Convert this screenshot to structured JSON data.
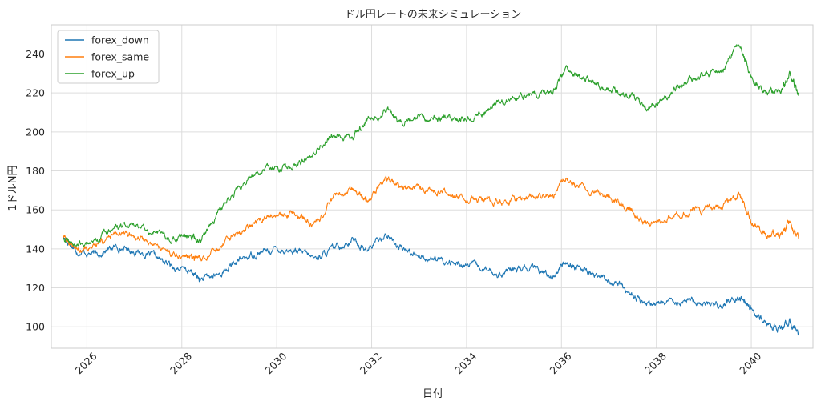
{
  "chart_data": {
    "type": "line",
    "title": "ドル円レートの未来シミュレーション",
    "xlabel": "日付",
    "ylabel": "1ドルN円",
    "xlim": [
      2025.25,
      2041.3
    ],
    "ylim": [
      89,
      255
    ],
    "xticks": [
      2026,
      2028,
      2030,
      2032,
      2034,
      2036,
      2038,
      2040
    ],
    "yticks": [
      100,
      120,
      140,
      160,
      180,
      200,
      220,
      240
    ],
    "grid": true,
    "legend_position": "top-left",
    "colors": {
      "forex_down": "#1f77b4",
      "forex_same": "#ff7f0e",
      "forex_up": "#2ca02c"
    },
    "series": [
      {
        "name": "forex_down",
        "x": [
          2025.5,
          2025.8,
          2026.2,
          2026.6,
          2027.0,
          2027.4,
          2027.8,
          2028.2,
          2028.4,
          2028.8,
          2029.2,
          2029.6,
          2030.0,
          2030.4,
          2030.8,
          2031.2,
          2031.6,
          2031.9,
          2032.3,
          2032.6,
          2033.0,
          2033.4,
          2033.8,
          2034.2,
          2034.6,
          2035.0,
          2035.4,
          2035.8,
          2036.1,
          2036.4,
          2036.8,
          2037.2,
          2037.5,
          2037.8,
          2038.2,
          2038.6,
          2039.0,
          2039.4,
          2039.75,
          2040.0,
          2040.3,
          2040.6,
          2040.8,
          2041.0
        ],
        "values": [
          146,
          139,
          137,
          141,
          139,
          136,
          131,
          128,
          124,
          127,
          134,
          138,
          140,
          139,
          135,
          140,
          145,
          139,
          148,
          140,
          137,
          134,
          132,
          131,
          127,
          129,
          130,
          126,
          134,
          129,
          126,
          122,
          116,
          111,
          113,
          114,
          112,
          111,
          116,
          109,
          101,
          99,
          102,
          97
        ]
      },
      {
        "name": "forex_same",
        "x": [
          2025.5,
          2025.8,
          2026.2,
          2026.6,
          2027.0,
          2027.4,
          2027.8,
          2028.2,
          2028.4,
          2028.8,
          2029.2,
          2029.6,
          2030.0,
          2030.4,
          2030.8,
          2031.2,
          2031.6,
          2031.9,
          2032.3,
          2032.6,
          2033.0,
          2033.4,
          2033.8,
          2034.2,
          2034.6,
          2035.0,
          2035.4,
          2035.8,
          2036.1,
          2036.4,
          2036.8,
          2037.2,
          2037.5,
          2037.8,
          2038.2,
          2038.6,
          2039.0,
          2039.4,
          2039.75,
          2040.0,
          2040.3,
          2040.6,
          2040.8,
          2041.0
        ],
        "values": [
          146,
          140,
          141,
          147,
          146,
          142,
          137,
          136,
          133,
          140,
          148,
          154,
          158,
          158,
          152,
          166,
          170,
          165,
          177,
          170,
          171,
          169,
          166,
          165,
          164,
          165,
          167,
          166,
          177,
          171,
          168,
          164,
          159,
          153,
          157,
          159,
          160,
          161,
          169,
          155,
          147,
          148,
          153,
          146
        ]
      },
      {
        "name": "forex_up",
        "x": [
          2025.5,
          2025.8,
          2026.2,
          2026.6,
          2027.0,
          2027.4,
          2027.8,
          2028.2,
          2028.4,
          2028.8,
          2029.2,
          2029.6,
          2030.0,
          2030.4,
          2030.8,
          2031.2,
          2031.6,
          2031.9,
          2032.3,
          2032.6,
          2033.0,
          2033.4,
          2033.8,
          2034.2,
          2034.6,
          2035.0,
          2035.4,
          2035.8,
          2036.1,
          2036.4,
          2036.8,
          2037.2,
          2037.5,
          2037.8,
          2038.2,
          2038.6,
          2039.0,
          2039.4,
          2039.75,
          2040.0,
          2040.3,
          2040.6,
          2040.8,
          2041.0
        ],
        "values": [
          146,
          141,
          145,
          151,
          152,
          149,
          145,
          146,
          145,
          160,
          171,
          180,
          181,
          183,
          190,
          199,
          197,
          207,
          211,
          205,
          207,
          207,
          207,
          208,
          214,
          218,
          219,
          221,
          232,
          228,
          224,
          219,
          218,
          212,
          218,
          225,
          229,
          232,
          246,
          228,
          219,
          222,
          229,
          219
        ]
      }
    ]
  }
}
